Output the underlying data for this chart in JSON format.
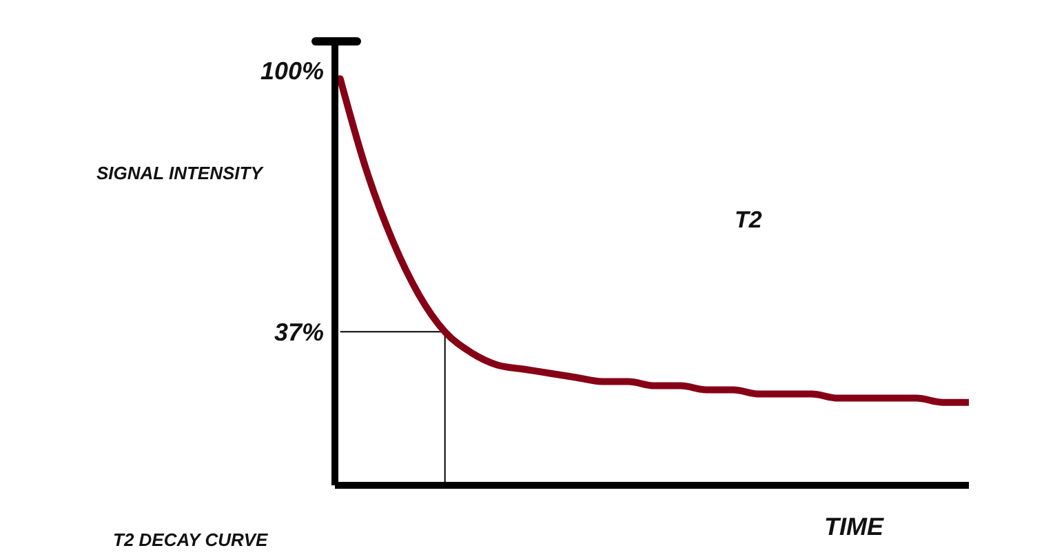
{
  "chart_data": {
    "type": "line",
    "title": "T2 DECAY CURVE",
    "xlabel": "TIME",
    "ylabel": "SIGNAL INTENSITY",
    "annotations": [
      "T2"
    ],
    "categories": [
      null,
      null,
      null,
      null,
      null,
      null,
      null,
      null,
      null,
      null,
      null,
      null,
      null,
      null,
      null,
      null,
      null,
      null,
      null,
      null,
      null,
      null,
      null,
      null,
      null
    ],
    "series": [
      {
        "color": "#860016",
        "values": [
          98,
          76,
          59,
          46,
          37,
          32,
          29,
          28,
          27,
          26,
          25,
          25,
          24,
          24,
          23,
          23,
          22,
          22,
          22,
          21,
          21,
          21,
          21,
          20,
          20
        ]
      }
    ],
    "ylim": [
      0,
      107
    ],
    "yticks": [
      {
        "value": 37,
        "label": "37%"
      },
      {
        "value": 100,
        "label": "100%"
      }
    ],
    "tick_labels": "y",
    "ref_lines": [
      {
        "axis": "y",
        "value": 37,
        "color": "#000000"
      }
    ]
  }
}
